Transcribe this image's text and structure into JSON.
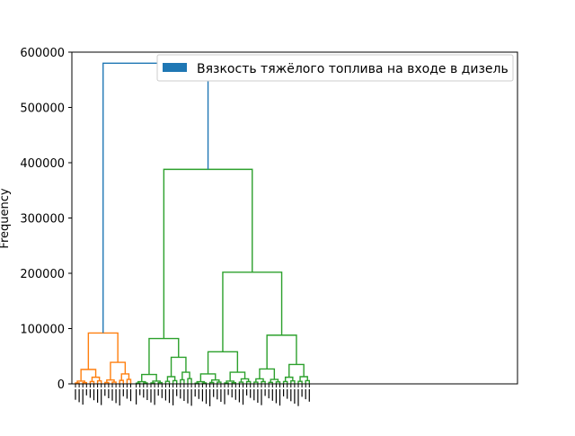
{
  "chart_data": {
    "type": "dendrogram",
    "title": "",
    "xlabel": "",
    "ylabel": "Frequency",
    "ylim": [
      0,
      600000
    ],
    "yticks": [
      0,
      100000,
      200000,
      300000,
      400000,
      500000,
      600000
    ],
    "ytick_labels": [
      "0",
      "100000",
      "200000",
      "300000",
      "400000",
      "500000",
      "600000"
    ],
    "grid": false,
    "legend": {
      "position": "top-right",
      "entries": [
        {
          "label": "Вязкость тяжёлого топлива на входе в дизель",
          "color": "#1f77b4"
        }
      ]
    },
    "colors": {
      "root": "#1f77b4",
      "cluster_1": "#ff7f0e",
      "cluster_2": "#2ca02c"
    },
    "root_merge_height": 580000,
    "clusters": [
      {
        "color": "cluster_1",
        "merge_height": 92000,
        "subclusters": [
          {
            "merge_height": 26000,
            "parts": [
              5000,
              12000
            ]
          },
          {
            "merge_height": 39000,
            "parts": [
              7000,
              18000
            ]
          }
        ]
      },
      {
        "color": "cluster_2",
        "merge_height": 388000,
        "subclusters": [
          {
            "merge_height": 82000,
            "subclusters": [
              {
                "merge_height": 17000,
                "parts": [
                  4000,
                  5000
                ]
              },
              {
                "merge_height": 48000,
                "parts": [
                  13000,
                  21000
                ]
              }
            ]
          },
          {
            "merge_height": 202000,
            "subclusters": [
              {
                "merge_height": 58000,
                "subclusters": [
                  {
                    "merge_height": 18000,
                    "parts": [
                      4000,
                      7000
                    ]
                  },
                  {
                    "merge_height": 21000,
                    "parts": [
                      5000,
                      9000
                    ]
                  }
                ]
              },
              {
                "merge_height": 88000,
                "subclusters": [
                  {
                    "merge_height": 27000,
                    "parts": [
                      9000,
                      8000
                    ]
                  },
                  {
                    "merge_height": 35000,
                    "parts": [
                      12000,
                      13000
                    ]
                  }
                ]
              }
            ]
          }
        ]
      }
    ]
  }
}
